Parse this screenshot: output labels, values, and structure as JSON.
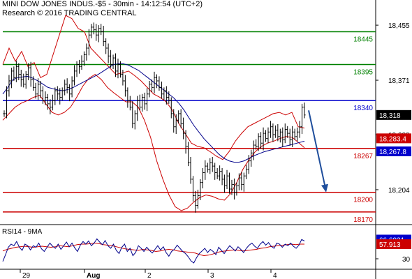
{
  "header": {
    "line1": "MINI DOW JONES INDUS.-$5 - 30min - 14:12:54 (UTC+2)",
    "line2": "Research © 2016 TRADING CENTRAL"
  },
  "chart_data": [
    {
      "type": "candlestick",
      "title": "MINI DOW JONES INDUS.-$5 - 30min",
      "x_tick_labels": [
        "29",
        "Aug",
        "2",
        "3",
        "4"
      ],
      "y_tick_labels": [
        "18,455",
        "18,371",
        "18,288",
        "18,204"
      ],
      "ylim": [
        18155,
        18470
      ],
      "horizontal_levels": [
        {
          "label": "18445",
          "value": 18445,
          "color": "#008000"
        },
        {
          "label": "18395",
          "value": 18395,
          "color": "#008000"
        },
        {
          "label": "18340",
          "value": 18340,
          "color": "#0000cc"
        },
        {
          "label": "18267",
          "value": 18267,
          "color": "#cc0000"
        },
        {
          "label": "18200",
          "value": 18200,
          "color": "#cc0000"
        },
        {
          "label": "18170",
          "value": 18170,
          "color": "#cc0000"
        }
      ],
      "price_tags": [
        {
          "label": "18,318",
          "value": 18318,
          "color": "#000000"
        },
        {
          "label": "18,283.4",
          "value": 18283.4,
          "color": "#cc0000"
        },
        {
          "label": "18,267.8",
          "value": 18267.8,
          "color": "#0000cc"
        }
      ],
      "close_path": [
        18320,
        18355,
        18370,
        18385,
        18375,
        18392,
        18380,
        18372,
        18365,
        18380,
        18390,
        18372,
        18360,
        18350,
        18365,
        18355,
        18340,
        18345,
        18335,
        18330,
        18340,
        18355,
        18350,
        18345,
        18355,
        18365,
        18360,
        18350,
        18370,
        18385,
        18395,
        18392,
        18400,
        18410,
        18420,
        18440,
        18452,
        18448,
        18440,
        18450,
        18445,
        18430,
        18420,
        18408,
        18395,
        18405,
        18385,
        18395,
        18380,
        18370,
        18355,
        18340,
        18330,
        18305,
        18320,
        18340,
        18330,
        18345,
        18335,
        18350,
        18365,
        18360,
        18375,
        18370,
        18360,
        18350,
        18355,
        18345,
        18340,
        18320,
        18300,
        18310,
        18320,
        18305,
        18290,
        18270,
        18245,
        18220,
        18195,
        18180,
        18195,
        18215,
        18230,
        18240,
        18235,
        18245,
        18240,
        18230,
        18225,
        18232,
        18220,
        18210,
        18225,
        18205,
        18212,
        18200,
        18210,
        18222,
        18212,
        18225,
        18235,
        18248,
        18260,
        18272,
        18270,
        18285,
        18275,
        18290,
        18282,
        18292,
        18300,
        18288,
        18295,
        18285,
        18292,
        18280,
        18296,
        18290,
        18280,
        18292,
        18285,
        18292,
        18300,
        18330,
        18318
      ],
      "moving_average": [
        18350,
        18360,
        18372,
        18375,
        18376,
        18377,
        18374,
        18370,
        18365,
        18360,
        18358,
        18356,
        18355,
        18357,
        18360,
        18364,
        18368,
        18372,
        18376,
        18380,
        18385,
        18390,
        18395,
        18396,
        18396,
        18394,
        18390,
        18386,
        18380,
        18374,
        18368,
        18362,
        18356,
        18350,
        18344,
        18336,
        18326,
        18314,
        18302,
        18292,
        18282,
        18274,
        18266,
        18258,
        18252,
        18248,
        18246,
        18246,
        18248,
        18252,
        18256,
        18259,
        18262,
        18264,
        18266,
        18268,
        18270,
        18272,
        18274,
        18276,
        18278
      ],
      "bollinger_upper": [
        18395,
        18420,
        18400,
        18415,
        18392,
        18398,
        18375,
        18380,
        18410,
        18440,
        18470,
        18465,
        18450,
        18445,
        18420,
        18410,
        18400,
        18390,
        18380,
        18382,
        18385,
        18378,
        18370,
        18360,
        18350,
        18345,
        18338,
        18325,
        18305,
        18290,
        18275,
        18270,
        18268,
        18262,
        18255,
        18250,
        18262,
        18278,
        18290,
        18300,
        18305,
        18310,
        18315,
        18320,
        18322,
        18318,
        18322,
        18300,
        18298
      ],
      "bollinger_lower": [
        18310,
        18320,
        18330,
        18336,
        18340,
        18345,
        18348,
        18335,
        18322,
        18318,
        18322,
        18330,
        18345,
        18362,
        18374,
        18380,
        18372,
        18360,
        18352,
        18345,
        18338,
        18338,
        18330,
        18310,
        18284,
        18248,
        18220,
        18196,
        18178,
        18172,
        18176,
        18185,
        18192,
        18196,
        18194,
        18190,
        18188,
        18198,
        18215,
        18235,
        18250,
        18262,
        18270,
        18275,
        18278,
        18282,
        18285,
        18284,
        18276,
        18268
      ],
      "forecast_arrow": {
        "from": 18325,
        "to": 18200,
        "color": "#1f4e9c"
      }
    },
    {
      "type": "line",
      "title": "RSI14 - 9MA",
      "y_tick_labels": [
        "30"
      ],
      "ylim": [
        10,
        90
      ],
      "price_tags": [
        {
          "label": "66.6931",
          "value": 66.6931,
          "color": "#0000cc"
        },
        {
          "label": "57.913",
          "value": 57.913,
          "color": "#cc0000"
        }
      ],
      "series": [
        {
          "name": "RSI14",
          "color": "#00008b",
          "values": [
            25,
            38,
            52,
            58,
            55,
            63,
            52,
            46,
            58,
            55,
            47,
            55,
            52,
            60,
            49,
            44,
            52,
            60,
            54,
            50,
            58,
            48,
            55,
            62,
            53,
            60,
            51,
            44,
            56,
            63,
            58,
            64,
            55,
            60,
            68,
            62,
            57,
            65,
            55,
            50,
            58,
            46,
            40,
            52,
            58,
            44,
            50,
            36,
            42,
            55,
            50,
            44,
            52,
            46,
            41,
            48,
            55,
            47,
            53,
            42,
            35,
            44,
            48,
            56,
            50,
            44,
            40,
            34,
            26,
            22,
            32,
            40,
            45,
            50,
            42,
            48,
            44,
            38,
            52,
            46,
            40,
            48,
            55,
            50,
            45,
            53,
            48,
            42,
            50,
            56,
            60,
            54,
            50,
            58,
            63,
            56,
            61,
            54,
            50,
            60,
            58,
            52,
            58,
            55,
            60,
            54,
            50,
            56,
            67,
            64
          ]
        },
        {
          "name": "9MA",
          "color": "#cc0000",
          "values": [
            45,
            48,
            50,
            52,
            53,
            54,
            53,
            52,
            53,
            54,
            53,
            52,
            53,
            55,
            54,
            53,
            55,
            57,
            58,
            58,
            59,
            60,
            59,
            57,
            56,
            55,
            53,
            51,
            49,
            48,
            47,
            46,
            48,
            47,
            46,
            44,
            45,
            47,
            48,
            47,
            45,
            44,
            43,
            42,
            41,
            38,
            36,
            37,
            39,
            42,
            44,
            45,
            46,
            47,
            46,
            45,
            46,
            47,
            48,
            50,
            51,
            53,
            54,
            55,
            56,
            57,
            58,
            57,
            58,
            58
          ]
        }
      ]
    }
  ]
}
